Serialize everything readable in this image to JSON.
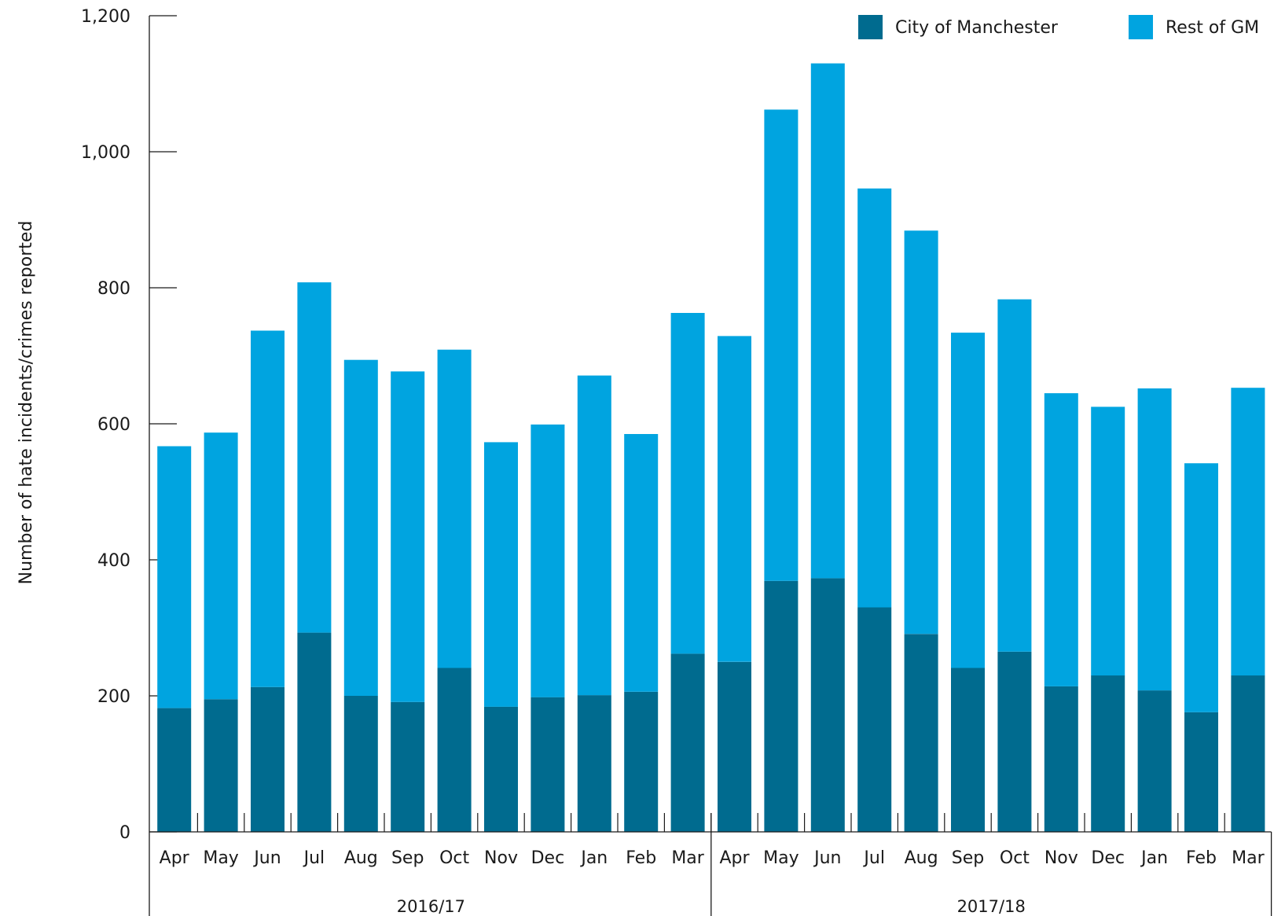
{
  "chart_data": {
    "type": "bar",
    "stacked": true,
    "ylabel": "Number of hate incidents/crimes reported",
    "xlabel": "",
    "ylim": [
      0,
      1200
    ],
    "yticks": [
      0,
      200,
      400,
      600,
      800,
      1000,
      1200
    ],
    "ytick_labels": [
      "0",
      "200",
      "400",
      "600",
      "800",
      "1,000",
      "1,200"
    ],
    "grid": false,
    "legend_position": "top-right",
    "categories": [
      "Apr",
      "May",
      "Jun",
      "Jul",
      "Aug",
      "Sep",
      "Oct",
      "Nov",
      "Dec",
      "Jan",
      "Feb",
      "Mar",
      "Apr",
      "May",
      "Jun",
      "Jul",
      "Aug",
      "Sep",
      "Oct",
      "Nov",
      "Dec",
      "Jan",
      "Feb",
      "Mar"
    ],
    "groups": [
      {
        "label": "2016/17",
        "count": 12
      },
      {
        "label": "2017/18",
        "count": 12
      }
    ],
    "series": [
      {
        "name": "City of Manchester",
        "color": "#006b8f",
        "values": [
          182,
          195,
          213,
          293,
          200,
          191,
          241,
          184,
          198,
          201,
          206,
          262,
          250,
          369,
          373,
          330,
          291,
          241,
          265,
          214,
          230,
          208,
          176,
          230
        ]
      },
      {
        "name": "Rest of GM",
        "color": "#00a4e0",
        "values": [
          385,
          392,
          524,
          515,
          494,
          486,
          468,
          389,
          401,
          470,
          379,
          501,
          479,
          693,
          757,
          616,
          593,
          493,
          518,
          431,
          395,
          444,
          366,
          423
        ]
      }
    ]
  }
}
